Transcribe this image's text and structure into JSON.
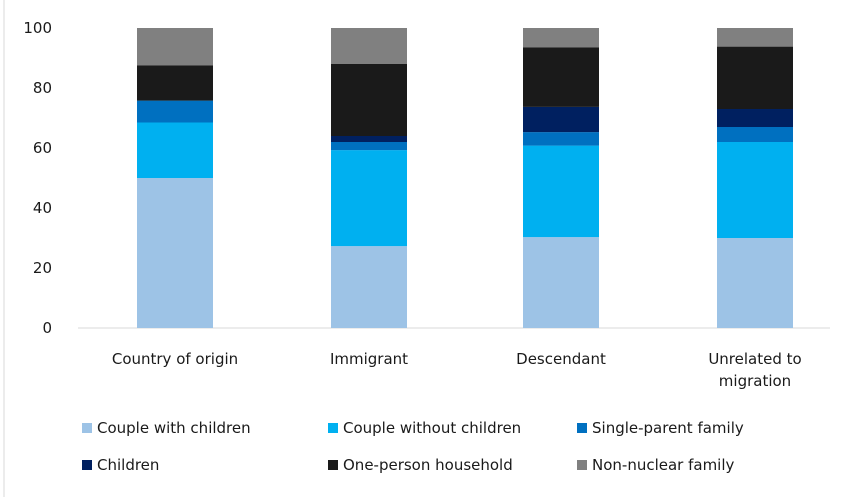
{
  "chart_data": {
    "type": "bar",
    "stacked": true,
    "title": "",
    "xlabel": "",
    "ylabel": "",
    "ylim": [
      0,
      100
    ],
    "yticks": [
      0,
      20,
      40,
      60,
      80,
      100
    ],
    "grid": false,
    "legend_position": "bottom",
    "categories": [
      [
        "Country of origin"
      ],
      [
        "Immigrant"
      ],
      [
        "Descendant"
      ],
      [
        "Unrelated to",
        "migration"
      ]
    ],
    "series": [
      {
        "name": "Couple with children",
        "color": "#9DC3E6",
        "values": [
          50.0,
          27.3,
          30.3,
          30.0
        ]
      },
      {
        "name": "Couple without children",
        "color": "#00B0F0",
        "values": [
          18.5,
          32.0,
          30.5,
          32.0
        ]
      },
      {
        "name": "Single-parent family",
        "color": "#0070C0",
        "values": [
          7.3,
          2.7,
          4.5,
          5.0
        ]
      },
      {
        "name": "Children",
        "color": "#002060",
        "values": [
          0.0,
          2.0,
          8.4,
          6.0
        ]
      },
      {
        "name": "One-person household",
        "color": "#1A1A1A",
        "values": [
          11.7,
          24.0,
          19.8,
          20.8
        ]
      },
      {
        "name": "Non-nuclear family",
        "color": "#808080",
        "values": [
          12.5,
          12.0,
          6.5,
          6.2
        ]
      }
    ]
  }
}
